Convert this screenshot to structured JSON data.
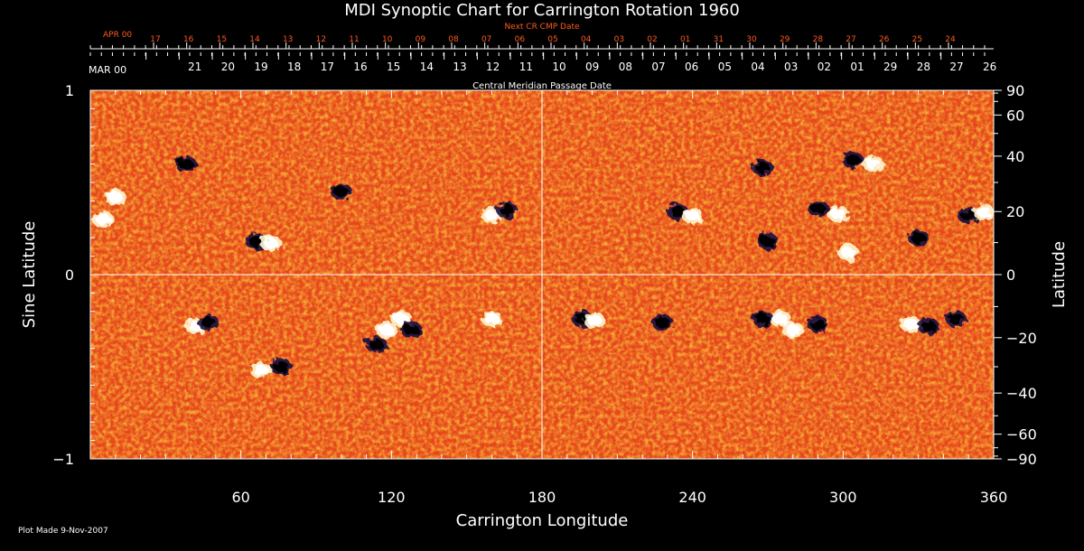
{
  "chart_data": {
    "type": "heatmap",
    "title": "MDI Synoptic Chart for Carrington Rotation 1960",
    "xlabel": "Carrington Longitude",
    "ylabel_left": "Sine Latitude",
    "ylabel_right": "Latitude",
    "xlim": [
      0,
      360
    ],
    "ylim": [
      -1,
      1
    ],
    "x_ticks": [
      60,
      120,
      180,
      240,
      300,
      360
    ],
    "x_minor_step": 10,
    "y_left_ticks": [
      {
        "value": 1,
        "label": "1"
      },
      {
        "value": 0,
        "label": "0"
      },
      {
        "value": -1,
        "label": "−1"
      }
    ],
    "y_right_ticks": [
      {
        "deg": 90,
        "label": "90"
      },
      {
        "deg": 60,
        "label": "60"
      },
      {
        "deg": 40,
        "label": "40"
      },
      {
        "deg": 20,
        "label": "20"
      },
      {
        "deg": 0,
        "label": "0"
      },
      {
        "deg": -20,
        "label": "−20"
      },
      {
        "deg": -40,
        "label": "−40"
      },
      {
        "deg": -60,
        "label": "−60"
      },
      {
        "deg": -90,
        "label": "−90"
      }
    ],
    "y_right_minor_step_deg": 10,
    "crosshair": {
      "longitude": 180,
      "sine_latitude": 0
    },
    "next_cr_axis": {
      "title": "Next CR CMP Date",
      "month_label": "APR 00",
      "dates": [
        "17",
        "16",
        "15",
        "14",
        "13",
        "12",
        "11",
        "10",
        "09",
        "08",
        "07",
        "06",
        "05",
        "04",
        "03",
        "02",
        "01",
        "31",
        "30",
        "29",
        "28",
        "27",
        "26",
        "25",
        "24"
      ],
      "first_longitude": 25.2,
      "step_longitude": 13.2
    },
    "cmp_axis": {
      "title": "Central Meridian Passage Date",
      "month_label": "MAR 00",
      "dates": [
        "21",
        "20",
        "19",
        "18",
        "17",
        "16",
        "15",
        "14",
        "13",
        "12",
        "11",
        "10",
        "09",
        "08",
        "07",
        "06",
        "05",
        "04",
        "03",
        "02",
        "01",
        "29",
        "28",
        "27",
        "26"
      ],
      "first_longitude": 22.2,
      "step_longitude": 13.2
    },
    "active_regions": [
      {
        "lon": 5,
        "sinlat": 0.3,
        "polarity": "positive"
      },
      {
        "lon": 10,
        "sinlat": 0.42,
        "polarity": "positive"
      },
      {
        "lon": 66,
        "sinlat": 0.18,
        "polarity": "negative"
      },
      {
        "lon": 72,
        "sinlat": 0.17,
        "polarity": "positive"
      },
      {
        "lon": 38,
        "sinlat": 0.6,
        "polarity": "negative"
      },
      {
        "lon": 100,
        "sinlat": 0.45,
        "polarity": "negative"
      },
      {
        "lon": 160,
        "sinlat": 0.32,
        "polarity": "positive"
      },
      {
        "lon": 166,
        "sinlat": 0.35,
        "polarity": "negative"
      },
      {
        "lon": 234,
        "sinlat": 0.34,
        "polarity": "negative"
      },
      {
        "lon": 240,
        "sinlat": 0.32,
        "polarity": "positive"
      },
      {
        "lon": 270,
        "sinlat": 0.18,
        "polarity": "negative"
      },
      {
        "lon": 268,
        "sinlat": 0.58,
        "polarity": "negative"
      },
      {
        "lon": 290,
        "sinlat": 0.36,
        "polarity": "negative"
      },
      {
        "lon": 298,
        "sinlat": 0.33,
        "polarity": "positive"
      },
      {
        "lon": 304,
        "sinlat": 0.62,
        "polarity": "negative"
      },
      {
        "lon": 312,
        "sinlat": 0.6,
        "polarity": "positive"
      },
      {
        "lon": 302,
        "sinlat": 0.12,
        "polarity": "positive"
      },
      {
        "lon": 330,
        "sinlat": 0.2,
        "polarity": "negative"
      },
      {
        "lon": 350,
        "sinlat": 0.32,
        "polarity": "negative"
      },
      {
        "lon": 356,
        "sinlat": 0.34,
        "polarity": "positive"
      },
      {
        "lon": 42,
        "sinlat": -0.28,
        "polarity": "positive"
      },
      {
        "lon": 47,
        "sinlat": -0.26,
        "polarity": "negative"
      },
      {
        "lon": 68,
        "sinlat": -0.52,
        "polarity": "positive"
      },
      {
        "lon": 76,
        "sinlat": -0.5,
        "polarity": "negative"
      },
      {
        "lon": 118,
        "sinlat": -0.3,
        "polarity": "positive"
      },
      {
        "lon": 124,
        "sinlat": -0.24,
        "polarity": "positive"
      },
      {
        "lon": 128,
        "sinlat": -0.3,
        "polarity": "negative"
      },
      {
        "lon": 114,
        "sinlat": -0.38,
        "polarity": "negative"
      },
      {
        "lon": 160,
        "sinlat": -0.24,
        "polarity": "positive"
      },
      {
        "lon": 196,
        "sinlat": -0.24,
        "polarity": "negative"
      },
      {
        "lon": 201,
        "sinlat": -0.25,
        "polarity": "positive"
      },
      {
        "lon": 228,
        "sinlat": -0.26,
        "polarity": "negative"
      },
      {
        "lon": 275,
        "sinlat": -0.24,
        "polarity": "positive"
      },
      {
        "lon": 280,
        "sinlat": -0.3,
        "polarity": "positive"
      },
      {
        "lon": 268,
        "sinlat": -0.24,
        "polarity": "negative"
      },
      {
        "lon": 290,
        "sinlat": -0.27,
        "polarity": "negative"
      },
      {
        "lon": 327,
        "sinlat": -0.27,
        "polarity": "positive"
      },
      {
        "lon": 334,
        "sinlat": -0.28,
        "polarity": "negative"
      },
      {
        "lon": 345,
        "sinlat": -0.24,
        "polarity": "negative"
      }
    ],
    "colors": {
      "background": "#e8481a",
      "positive": "#ffffff",
      "negative": "#000000",
      "next_cr_text": "#ff5a1e",
      "axis": "#ffffff"
    }
  },
  "footer": {
    "plot_made": "Plot Made  9-Nov-2007"
  }
}
